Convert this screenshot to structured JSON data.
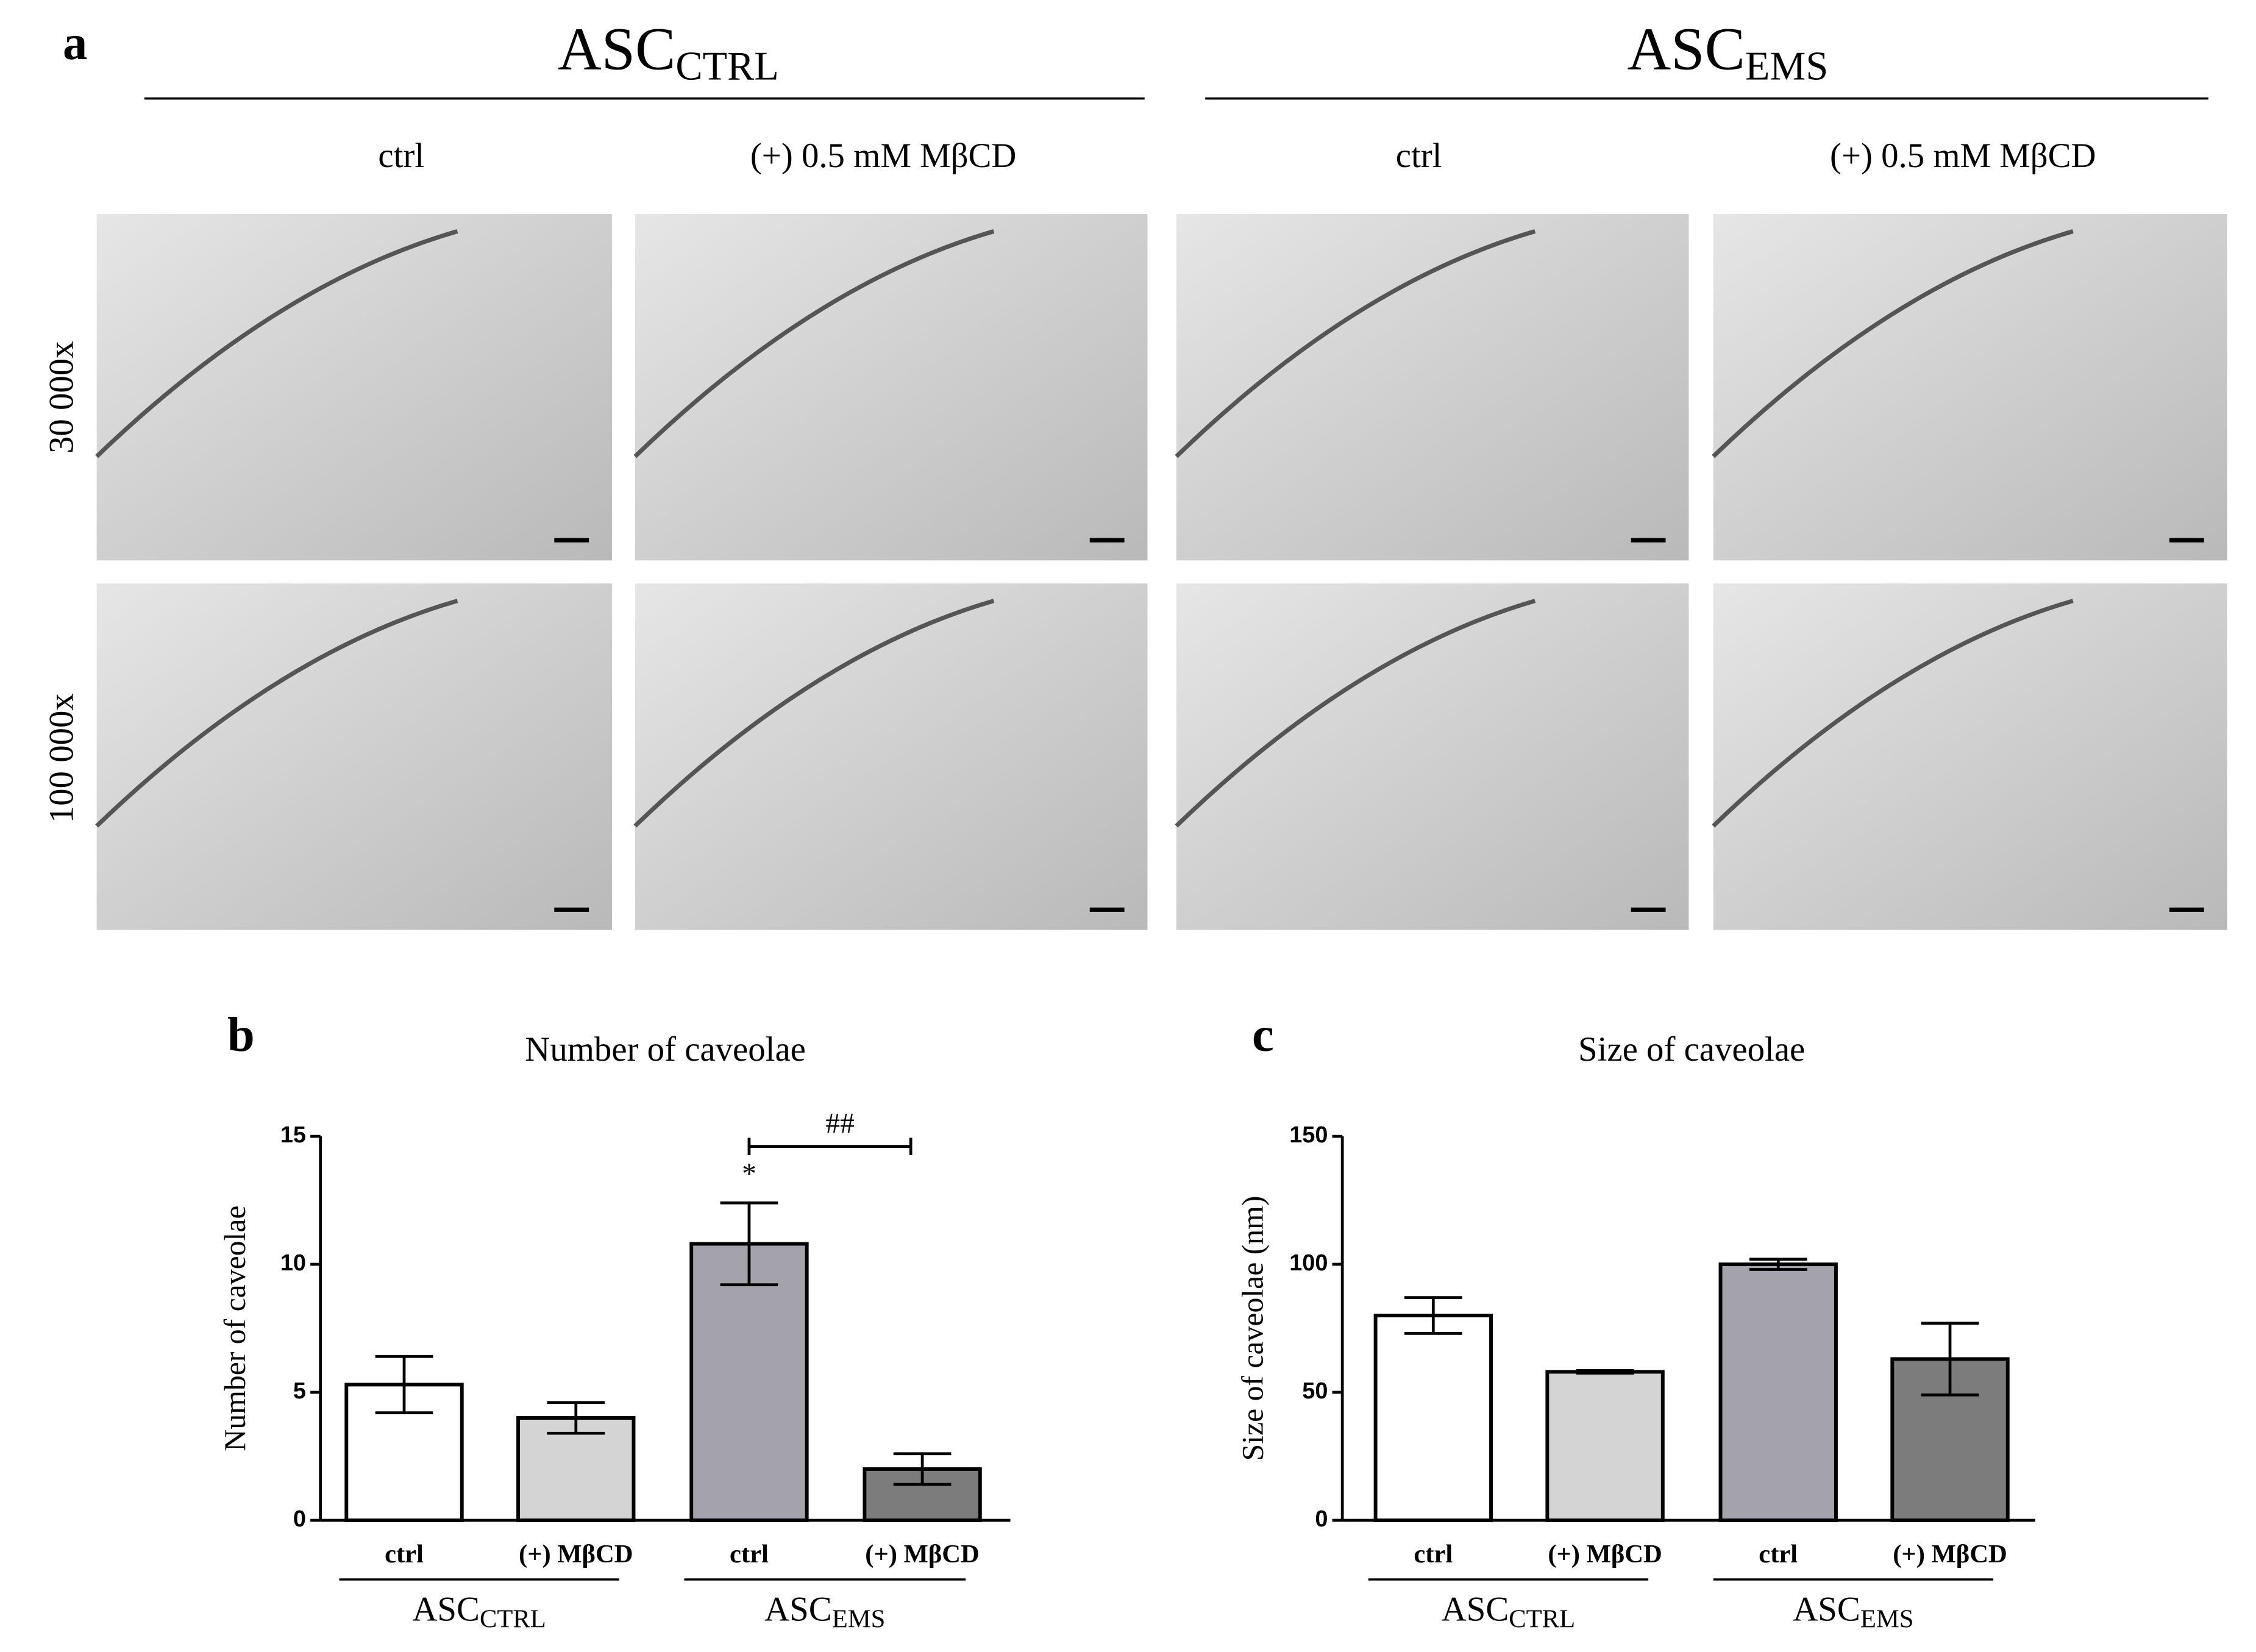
{
  "panel_a": {
    "label": "a",
    "groups": [
      {
        "name": "ASC",
        "sub": "CTRL"
      },
      {
        "name": "ASC",
        "sub": "EMS"
      }
    ],
    "columns": [
      "ctrl",
      "(+) 0.5 mM MβCD",
      "ctrl",
      "(+) 0.5 mM MβCD"
    ],
    "rows": [
      "30 000x",
      "100 000x"
    ]
  },
  "chart_data": [
    {
      "type": "bar",
      "panel": "b",
      "title": "Number of caveolae",
      "y_label": "Number of caveolae",
      "categories": [
        "ctrl",
        "(+) MβCD",
        "ctrl",
        "(+) MβCD"
      ],
      "groups": [
        {
          "name": "ASC",
          "sub": "CTRL"
        },
        {
          "name": "ASC",
          "sub": "EMS"
        }
      ],
      "values": [
        5.3,
        4.0,
        10.8,
        2.0
      ],
      "errors": [
        1.1,
        0.6,
        1.6,
        0.6
      ],
      "colors": [
        "#ffffff",
        "#d4d4d4",
        "#a4a3ab",
        "#7c7c7c"
      ],
      "ylim": [
        0,
        15
      ],
      "yticks": [
        0,
        5,
        10,
        15
      ],
      "annotations": [
        "*",
        "##"
      ]
    },
    {
      "type": "bar",
      "panel": "c",
      "title": "Size of caveolae",
      "y_label": "Size of caveolae (nm)",
      "categories": [
        "ctrl",
        "(+) MβCD",
        "ctrl",
        "(+) MβCD"
      ],
      "groups": [
        {
          "name": "ASC",
          "sub": "CTRL"
        },
        {
          "name": "ASC",
          "sub": "EMS"
        }
      ],
      "values": [
        80,
        58,
        100,
        63
      ],
      "errors": [
        7,
        0.5,
        2,
        14
      ],
      "colors": [
        "#ffffff",
        "#d4d4d4",
        "#a4a3ab",
        "#7c7c7c"
      ],
      "ylim": [
        0,
        150
      ],
      "yticks": [
        0,
        50,
        100,
        150
      ]
    }
  ]
}
